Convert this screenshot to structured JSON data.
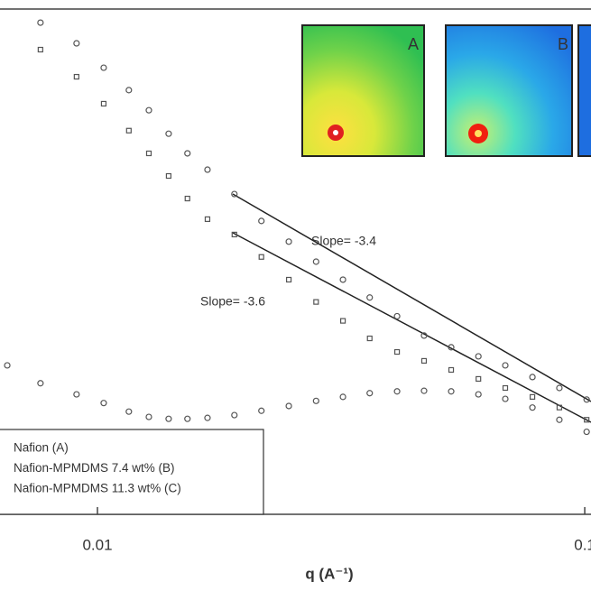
{
  "chart_data": {
    "type": "scatter",
    "x_label": "q (A⁻¹)",
    "x": [
      0.00653,
      0.00764,
      0.00906,
      0.0103,
      0.0116,
      0.01275,
      0.014,
      0.0153,
      0.01682,
      0.0191,
      0.0217,
      0.0247,
      0.0281,
      0.0319,
      0.0362,
      0.0412,
      0.0468,
      0.0532,
      0.0605,
      0.0687,
      0.0781,
      0.0887,
      0.1009
    ],
    "series": [
      {
        "name": "Nafion (A)",
        "color": "#555555",
        "marker": "circle",
        "values": [
          15.1,
          10.9,
          8.9,
          7.6,
          6.5,
          5.9,
          5.7,
          5.7,
          5.8,
          6.1,
          6.6,
          7.2,
          7.9,
          8.5,
          9.1,
          9.4,
          9.5,
          9.4,
          8.9,
          8.2,
          7.0,
          5.6,
          4.5
        ]
      },
      {
        "name": "Nafion-MPMDMS 7.4 wt% (B)",
        "color": "#555555",
        "marker": "circle",
        "values": [
          null,
          7800,
          5350,
          3430,
          2280,
          1580,
          1030,
          720,
          535,
          343,
          210,
          144,
          100,
          72,
          52,
          37,
          26,
          21,
          17.8,
          15.1,
          12.2,
          10,
          8.1
        ]
      },
      {
        "name": "Nafion-MPMDMS 11.3 wt% (C)",
        "color": "#555555",
        "marker": "square",
        "values": [
          null,
          4770,
          2910,
          1780,
          1090,
          720,
          477,
          316,
          217,
          164,
          109,
          72,
          48,
          34,
          24.7,
          19.3,
          16.4,
          13.9,
          11.8,
          10,
          8.5,
          7.0,
          5.6
        ]
      }
    ],
    "xlim": [
      0.00631,
      0.103
    ],
    "xticks": [
      0.01,
      0.1
    ],
    "x_log": true,
    "ylim": [
      1,
      10000
    ],
    "y_log": true,
    "annotations": [
      "Slope= -3.4",
      "Slope= -3.6"
    ],
    "insets": [
      {
        "label": "A"
      },
      {
        "label": "B"
      }
    ]
  }
}
